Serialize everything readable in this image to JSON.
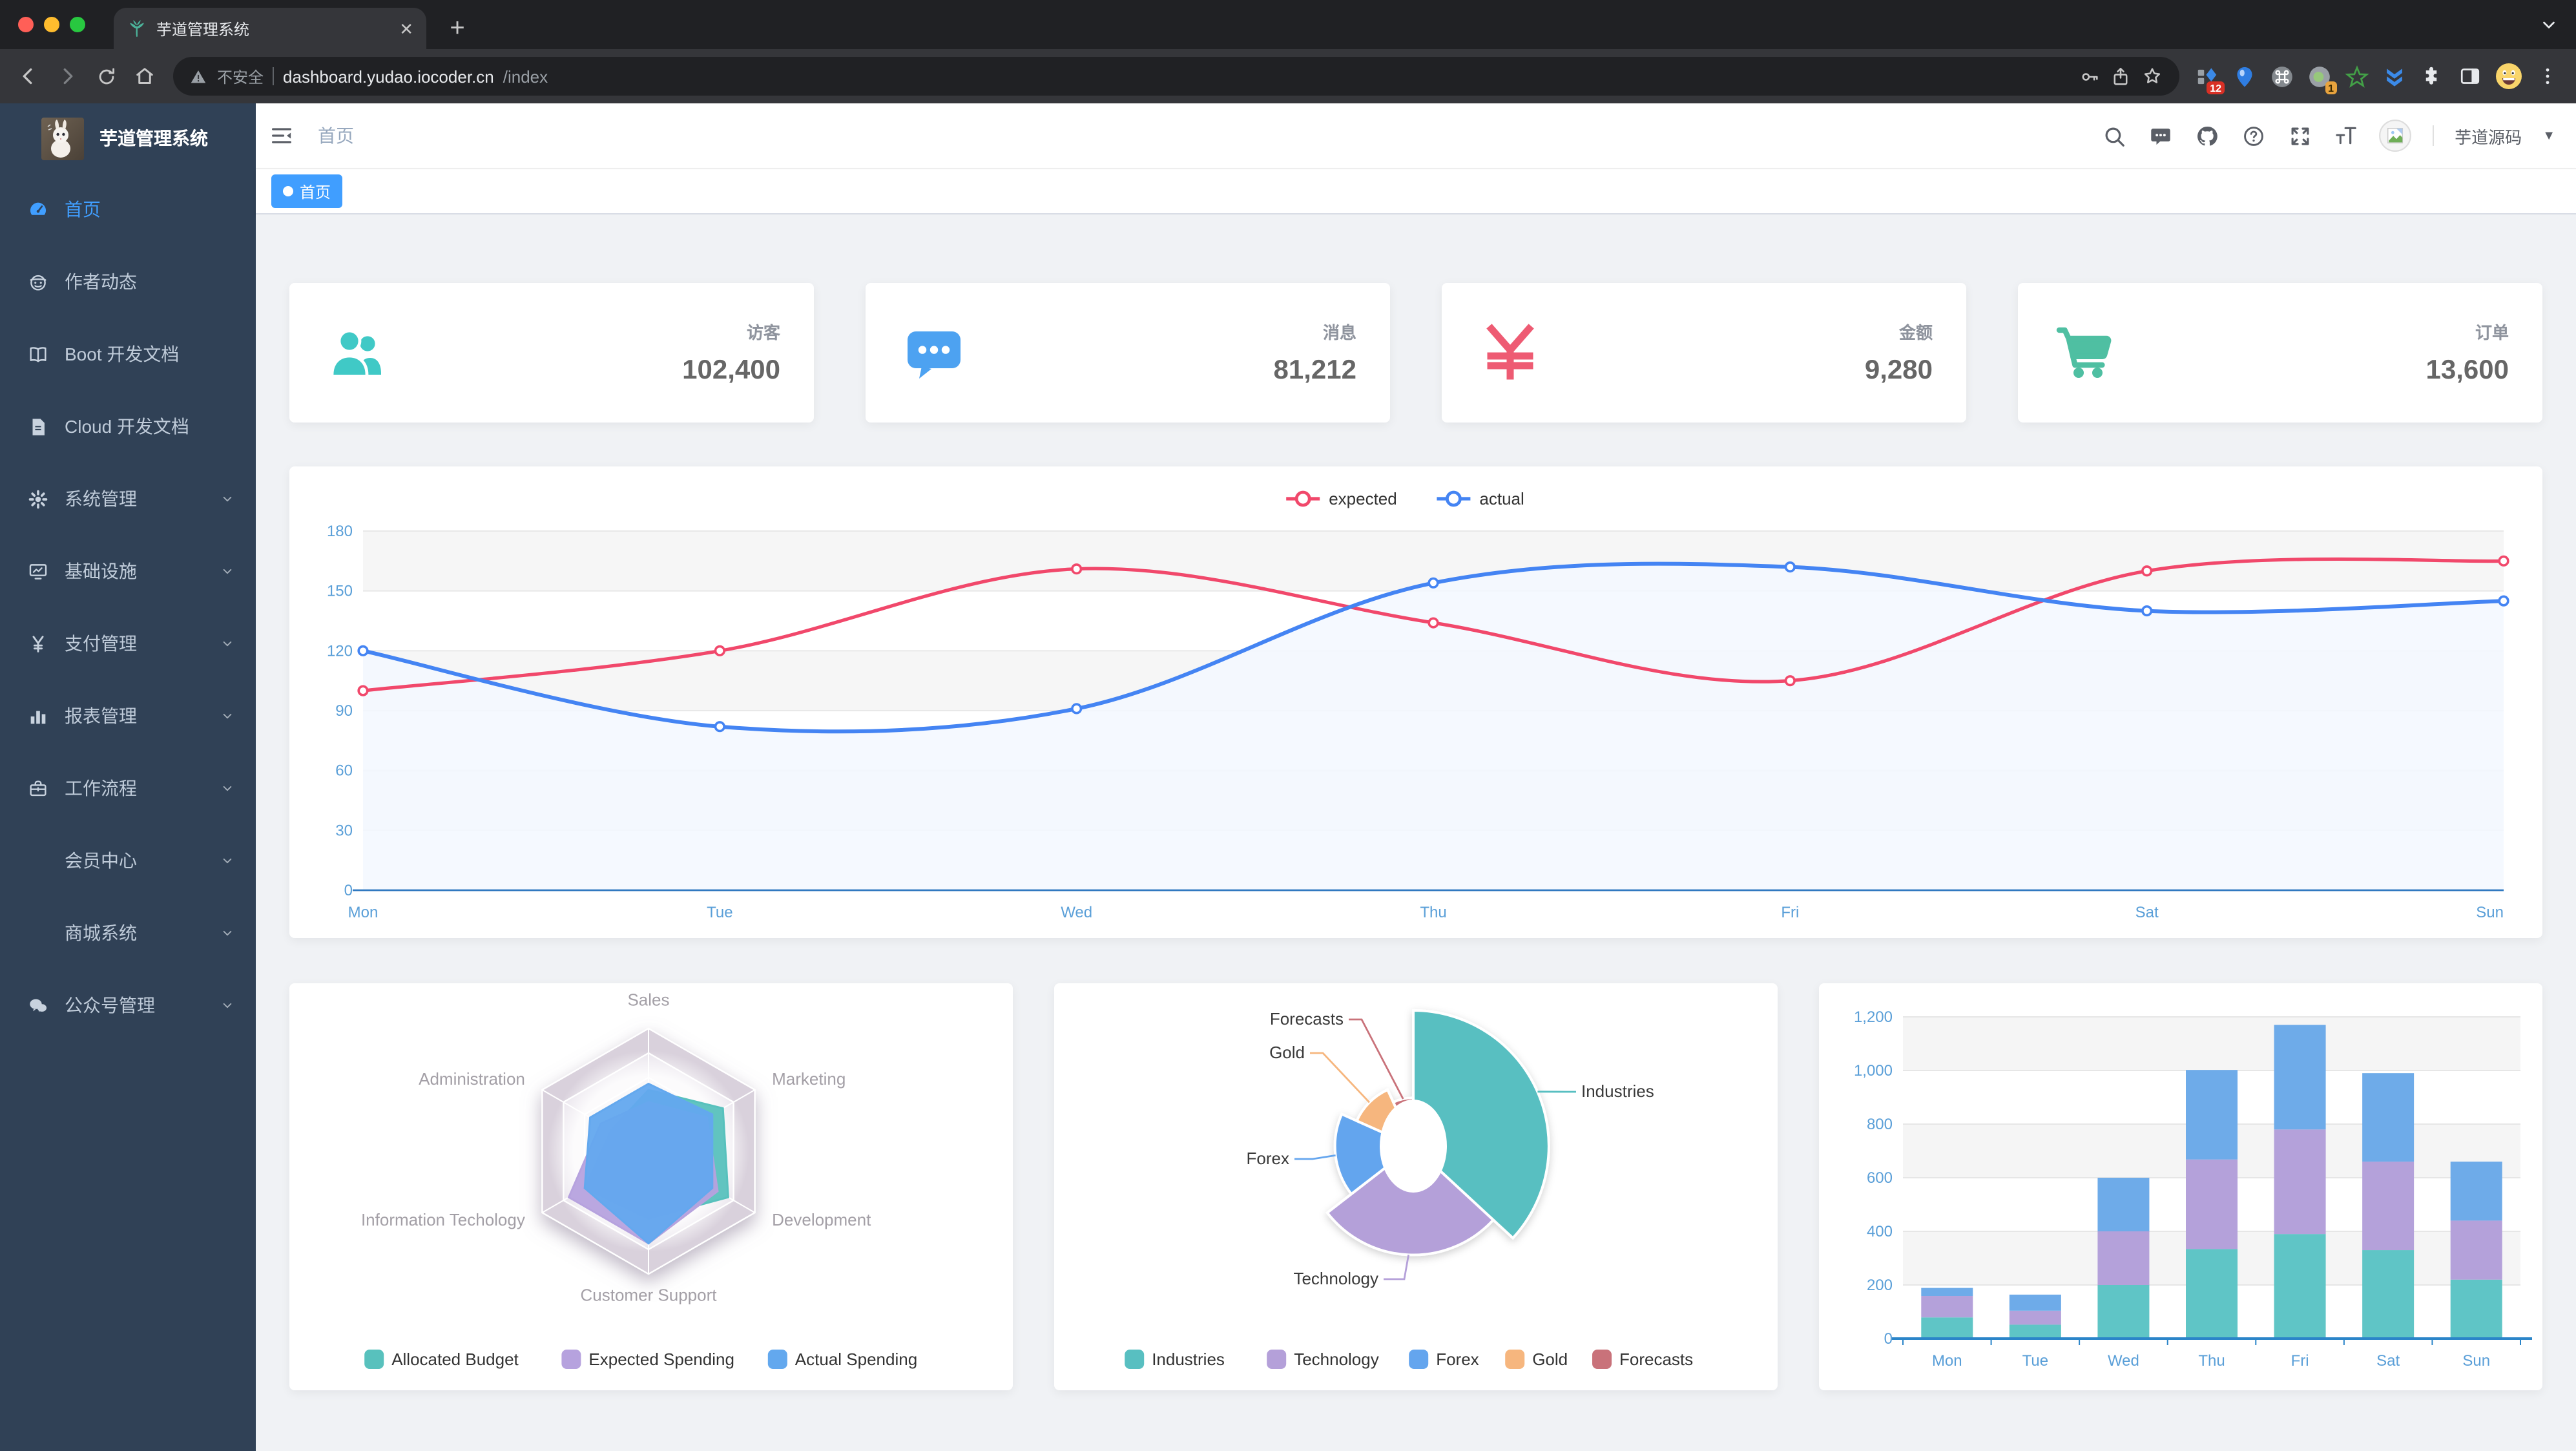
{
  "browser": {
    "traffic_lights": {
      "close": "#ff5f57",
      "minimize": "#febc2e",
      "zoom": "#28c840"
    },
    "tab": {
      "title": "芋道管理系统",
      "favicon": "leaf-icon",
      "close_label": "✕",
      "new_tab_label": "+"
    },
    "toolbar": {
      "security_warning": "不安全",
      "url_host": "dashboard.yudao.iocoder.cn",
      "url_path": "/index",
      "extensions": [
        {
          "icon": "ext-blue-diamond-icon",
          "badge": "12"
        },
        {
          "icon": "ext-balloon-icon",
          "badge": ""
        },
        {
          "icon": "ext-command-icon",
          "badge": ""
        },
        {
          "icon": "ext-green-dot-icon",
          "badge": "1"
        },
        {
          "icon": "ext-green-star-icon",
          "badge": ""
        },
        {
          "icon": "ext-blue-chevrons-icon",
          "badge": ""
        }
      ]
    }
  },
  "sidebar": {
    "logo_title": "芋道管理系统",
    "items": [
      {
        "icon": "dashboard-icon",
        "label": "首页",
        "active": true,
        "arrow": false
      },
      {
        "icon": "author-icon",
        "label": "作者动态",
        "active": false,
        "arrow": false
      },
      {
        "icon": "book-icon",
        "label": "Boot 开发文档",
        "active": false,
        "arrow": false
      },
      {
        "icon": "document-icon",
        "label": "Cloud 开发文档",
        "active": false,
        "arrow": false
      },
      {
        "icon": "gear-icon",
        "label": "系统管理",
        "active": false,
        "arrow": true
      },
      {
        "icon": "infrastructure-icon",
        "label": "基础设施",
        "active": false,
        "arrow": true
      },
      {
        "icon": "yen-icon",
        "label": "支付管理",
        "active": false,
        "arrow": true
      },
      {
        "icon": "bar-chart-icon",
        "label": "报表管理",
        "active": false,
        "arrow": true
      },
      {
        "icon": "briefcase-icon",
        "label": "工作流程",
        "active": false,
        "arrow": true
      },
      {
        "icon": "",
        "label": "会员中心",
        "active": false,
        "arrow": true
      },
      {
        "icon": "",
        "label": "商城系统",
        "active": false,
        "arrow": true
      },
      {
        "icon": "wechat-icon",
        "label": "公众号管理",
        "active": false,
        "arrow": true
      }
    ]
  },
  "header": {
    "breadcrumb": "首页",
    "icons": [
      "search-icon",
      "comment-icon",
      "github-icon",
      "question-icon",
      "fullscreen-icon",
      "font-size-icon"
    ],
    "user_name": "芋道源码"
  },
  "tags": {
    "active_tag": "首页"
  },
  "stats": {
    "cards": [
      {
        "icon": "peoples-icon",
        "color": "#40C9C6",
        "label": "访客",
        "value": "102,400"
      },
      {
        "icon": "message-icon",
        "color": "#4DA2F1",
        "label": "消息",
        "value": "81,212"
      },
      {
        "icon": "money-icon",
        "color": "#EE5B73",
        "label": "金额",
        "value": "9,280"
      },
      {
        "icon": "cart-icon",
        "color": "#4FBFA2",
        "label": "订单",
        "value": "13,600"
      }
    ]
  },
  "chart_data": [
    {
      "type": "line",
      "x": [
        "Mon",
        "Tue",
        "Wed",
        "Thu",
        "Fri",
        "Sat",
        "Sun"
      ],
      "series": [
        {
          "name": "expected",
          "color": "#F1486B",
          "values": [
            100,
            120,
            161,
            134,
            105,
            160,
            165
          ]
        },
        {
          "name": "actual",
          "color": "#4484F3",
          "area_color": "#f3f8ff",
          "values": [
            120,
            82,
            91,
            154,
            162,
            140,
            145
          ]
        }
      ],
      "ylim": [
        0,
        180
      ],
      "yticks": [
        0,
        30,
        60,
        90,
        120,
        150,
        180
      ],
      "legend_position": "top",
      "grid": "on"
    },
    {
      "type": "radar",
      "indicators": [
        {
          "name": "Sales",
          "max": 10000
        },
        {
          "name": "Administration",
          "max": 20000
        },
        {
          "name": "Information Techology",
          "max": 20000
        },
        {
          "name": "Customer Support",
          "max": 20000
        },
        {
          "name": "Development",
          "max": 20000
        },
        {
          "name": "Marketing",
          "max": 20000
        }
      ],
      "series": [
        {
          "name": "Allocated Budget",
          "color": "#58C1BD",
          "values": [
            5000,
            7000,
            12000,
            11000,
            15000,
            14000
          ]
        },
        {
          "name": "Expected Spending",
          "color": "#B6A2DE",
          "values": [
            4000,
            9000,
            15000,
            15000,
            13000,
            11000
          ]
        },
        {
          "name": "Actual Spending",
          "color": "#63A8EE",
          "values": [
            5500,
            11000,
            12000,
            15000,
            12000,
            12000
          ]
        }
      ],
      "legend_position": "bottom"
    },
    {
      "type": "pie",
      "rose": "radius",
      "items": [
        {
          "name": "Industries",
          "value": 320,
          "color": "#58BFC1"
        },
        {
          "name": "Technology",
          "value": 240,
          "color": "#B4A0D9"
        },
        {
          "name": "Forex",
          "value": 149,
          "color": "#64A5EE"
        },
        {
          "name": "Gold",
          "value": 100,
          "color": "#F6B67E"
        },
        {
          "name": "Forecasts",
          "value": 59,
          "color": "#C9727A"
        }
      ],
      "legend_position": "bottom"
    },
    {
      "type": "bar",
      "stacked": true,
      "categories": [
        "Mon",
        "Tue",
        "Wed",
        "Thu",
        "Fri",
        "Sat",
        "Sun"
      ],
      "series": [
        {
          "color": "#5FC5C6",
          "values": [
            79,
            52,
            200,
            334,
            390,
            330,
            220
          ]
        },
        {
          "color": "#B4A1DA",
          "values": [
            80,
            52,
            200,
            334,
            390,
            330,
            220
          ]
        },
        {
          "color": "#6EABE9",
          "values": [
            30,
            60,
            200,
            334,
            390,
            330,
            220
          ]
        }
      ],
      "ylim": [
        0,
        1200
      ],
      "yticks": [
        "0",
        "200",
        "400",
        "600",
        "800",
        "1,000",
        "1,200"
      ]
    }
  ]
}
